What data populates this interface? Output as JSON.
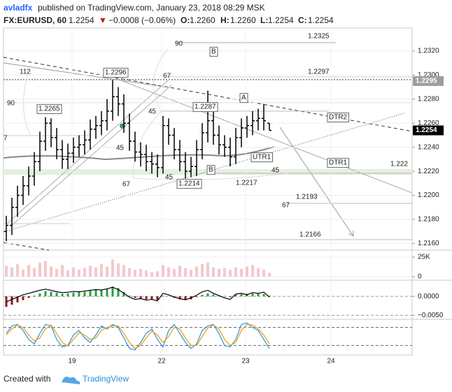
{
  "header": {
    "author": "avladfx",
    "published": "published on TradingView.com, January 23, 2018 08:29 MSK",
    "symbol": "FX:EURUSD, 60",
    "last": "1.2254",
    "arrow": "▼",
    "change": "−0.0008 (−0.06%)",
    "o_label": "O:",
    "o": "1.2260",
    "h_label": "H:",
    "h": "1.2260",
    "l_label": "L:",
    "l": "1.2254",
    "c_label": "C:",
    "c": "1.2254"
  },
  "footer": {
    "created": "Created with",
    "brand": "TradingView"
  },
  "annotations": [
    "1.2325",
    "90",
    "B",
    "1.2297",
    "112",
    "1.2296",
    "67",
    "A",
    "1.2265",
    "90",
    "1.2287",
    "45",
    "DTR2",
    "45",
    "UTR1",
    "DTR1",
    "1.222",
    "45",
    "B",
    "67",
    "1.2214",
    "45",
    "1.2217",
    "67",
    "1.2193",
    "1.2166",
    "7"
  ],
  "price_labels": [
    {
      "value": 1.2295,
      "label": "1.2295",
      "color": "#9e9e9e"
    },
    {
      "value": 1.2254,
      "label": "1.2254",
      "color": "#000000"
    }
  ],
  "chart_data": [
    {
      "type": "ohlc",
      "color": "#000000",
      "x": [
        0,
        1,
        2,
        3,
        4,
        5,
        6,
        7,
        8,
        9,
        10,
        11,
        12,
        13,
        14,
        15,
        16,
        17,
        18,
        19,
        20,
        21,
        22,
        23,
        24,
        25,
        26,
        27,
        28,
        29,
        30,
        31,
        32,
        33,
        34,
        35,
        36,
        37,
        38,
        39,
        40,
        41,
        42,
        43,
        44,
        45,
        46,
        47
      ],
      "open": [
        1.217,
        1.2175,
        1.219,
        1.22,
        1.2208,
        1.2216,
        1.2228,
        1.2245,
        1.226,
        1.2248,
        1.2238,
        1.223,
        1.2235,
        1.224,
        1.2242,
        1.2246,
        1.2255,
        1.2258,
        1.2262,
        1.227,
        1.2282,
        1.2276,
        1.226,
        1.2245,
        1.2236,
        1.2234,
        1.2228,
        1.2226,
        1.2223,
        1.2258,
        1.225,
        1.2238,
        1.2228,
        1.222,
        1.2224,
        1.2238,
        1.2252,
        1.2262,
        1.225,
        1.2242,
        1.224,
        1.2232,
        1.2248,
        1.2256,
        1.2258,
        1.2262,
        1.2264,
        1.226
      ],
      "high": [
        1.2183,
        1.2198,
        1.2208,
        1.2216,
        1.2224,
        1.2236,
        1.2253,
        1.2265,
        1.2264,
        1.2256,
        1.2246,
        1.2243,
        1.2248,
        1.225,
        1.2254,
        1.2263,
        1.2266,
        1.227,
        1.228,
        1.2296,
        1.229,
        1.2284,
        1.2268,
        1.2253,
        1.2244,
        1.2242,
        1.2236,
        1.2234,
        1.2266,
        1.2264,
        1.2256,
        1.2246,
        1.2236,
        1.2232,
        1.2246,
        1.226,
        1.2287,
        1.227,
        1.2258,
        1.225,
        1.2248,
        1.2256,
        1.2264,
        1.2266,
        1.227,
        1.2272,
        1.2276,
        1.226
      ],
      "low": [
        1.2162,
        1.2167,
        1.2182,
        1.2192,
        1.22,
        1.2208,
        1.222,
        1.2237,
        1.224,
        1.223,
        1.2222,
        1.2222,
        1.2227,
        1.2232,
        1.2234,
        1.2238,
        1.2247,
        1.225,
        1.2254,
        1.2262,
        1.2266,
        1.2252,
        1.2237,
        1.2228,
        1.2224,
        1.222,
        1.2218,
        1.2215,
        1.2218,
        1.2242,
        1.223,
        1.222,
        1.2214,
        1.2215,
        1.2216,
        1.223,
        1.2244,
        1.2242,
        1.2234,
        1.2232,
        1.2224,
        1.2226,
        1.224,
        1.2248,
        1.225,
        1.2254,
        1.2254,
        1.2254
      ],
      "close": [
        1.2175,
        1.219,
        1.22,
        1.2208,
        1.2216,
        1.2228,
        1.2245,
        1.226,
        1.2248,
        1.2238,
        1.223,
        1.2235,
        1.224,
        1.2242,
        1.2246,
        1.2255,
        1.2258,
        1.2262,
        1.227,
        1.2282,
        1.2276,
        1.226,
        1.2245,
        1.2236,
        1.2234,
        1.2228,
        1.2226,
        1.2223,
        1.2258,
        1.225,
        1.2238,
        1.2228,
        1.222,
        1.2224,
        1.2238,
        1.2252,
        1.2262,
        1.225,
        1.2242,
        1.224,
        1.2232,
        1.2248,
        1.2256,
        1.2258,
        1.2262,
        1.2264,
        1.2262,
        1.2254
      ],
      "xlim": [
        -0.5,
        72.5
      ],
      "ylim": [
        1.2155,
        1.2338
      ],
      "xticks": [
        {
          "value": 11.75,
          "label": "19"
        },
        {
          "value": 27.75,
          "label": "22"
        },
        {
          "value": 42.75,
          "label": "23"
        },
        {
          "value": 58,
          "label": "24"
        }
      ],
      "yticks": [
        {
          "value": 1.216,
          "label": "1.2160"
        },
        {
          "value": 1.218,
          "label": "1.2180"
        },
        {
          "value": 1.22,
          "label": "1.2200"
        },
        {
          "value": 1.222,
          "label": "1.2220"
        },
        {
          "value": 1.224,
          "label": "1.2240"
        },
        {
          "value": 1.226,
          "label": "1.2260"
        },
        {
          "value": 1.228,
          "label": "1.2280"
        },
        {
          "value": 1.23,
          "label": "1.2300"
        },
        {
          "value": 1.232,
          "label": "1.2320"
        }
      ]
    },
    {
      "type": "bar",
      "color": "#f2c9cc",
      "x": [
        0,
        1,
        2,
        3,
        4,
        5,
        6,
        7,
        8,
        9,
        10,
        11,
        12,
        13,
        14,
        15,
        16,
        17,
        18,
        19,
        20,
        21,
        22,
        23,
        24,
        25,
        26,
        27,
        28,
        29,
        30,
        31,
        32,
        33,
        34,
        35,
        36,
        37,
        38,
        39,
        40,
        41,
        42,
        43,
        44,
        45,
        46,
        47
      ],
      "values": [
        14000,
        12000,
        16000,
        9000,
        15000,
        11000,
        18000,
        20000,
        13000,
        10000,
        15000,
        8000,
        12000,
        9000,
        11000,
        14000,
        12000,
        16000,
        13000,
        22000,
        17000,
        15000,
        11000,
        9000,
        10000,
        8000,
        6000,
        7000,
        15000,
        12000,
        10000,
        14000,
        11000,
        9000,
        13000,
        16000,
        18000,
        12000,
        10000,
        11000,
        9000,
        12000,
        10000,
        13000,
        15000,
        11000,
        9000,
        5000
      ],
      "xlim": [
        -0.5,
        72.5
      ],
      "ylim": [
        0,
        30000
      ],
      "yticks": [
        {
          "value": 25000,
          "label": "25K"
        },
        0
      ]
    },
    {
      "type": "macd",
      "x": [
        0,
        1,
        2,
        3,
        4,
        5,
        6,
        7,
        8,
        9,
        10,
        11,
        12,
        13,
        14,
        15,
        16,
        17,
        18,
        19,
        20,
        21,
        22,
        23,
        24,
        25,
        26,
        27,
        28,
        29,
        30,
        31,
        32,
        33,
        34,
        35,
        36,
        37,
        38,
        39,
        40,
        41,
        42,
        43,
        44,
        45,
        46,
        47
      ],
      "series": [
        {
          "type": "bar",
          "color": "#2e9e3e",
          "negative_color": "#8b1a1a",
          "values": [
            -0.0028,
            -0.0022,
            -0.0016,
            -0.001,
            -0.0004,
            0.0002,
            0.0008,
            0.0014,
            0.0012,
            0.0009,
            0.0007,
            0.0008,
            0.001,
            0.0011,
            0.0012,
            0.0015,
            0.0017,
            0.0018,
            0.002,
            0.0026,
            0.0022,
            0.0012,
            0.0002,
            -0.0004,
            -0.0006,
            -0.0008,
            -0.0009,
            -0.001,
            0.0002,
            0.0001,
            -0.0004,
            -0.0008,
            -0.001,
            -0.0008,
            -0.0002,
            0.0004,
            0.0008,
            0.0005,
            0.0002,
            0.0001,
            -0.0002,
            0.0004,
            0.0006,
            0.0007,
            0.0008,
            0.0008,
            0.0006,
            0.0002
          ]
        },
        {
          "type": "line",
          "color": "#000000",
          "values": [
            -0.0015,
            -0.0008,
            -0.0002,
            0.0004,
            0.0008,
            0.0012,
            0.0016,
            0.0019,
            0.0016,
            0.0012,
            0.001,
            0.0011,
            0.0013,
            0.0012,
            0.0014,
            0.0016,
            0.0018,
            0.0017,
            0.002,
            0.0024,
            0.0018,
            0.0008,
            -0.0002,
            -0.0008,
            -0.0006,
            -0.001,
            -0.0008,
            -0.0012,
            0.0008,
            0.0004,
            -0.0002,
            -0.0006,
            -0.0009,
            -0.0004,
            0.0003,
            0.0012,
            0.0016,
            0.0008,
            0.0002,
            -0.0004,
            -0.0008,
            0.0006,
            0.0008,
            0.0004,
            0.001,
            0.0008,
            0.0011,
            -0.0002
          ]
        }
      ],
      "xlim": [
        -0.5,
        72.5
      ],
      "ylim": [
        -0.0057,
        0.0039
      ],
      "yticks": [
        {
          "value": 0,
          "label": "0.0000"
        },
        {
          "value": -0.005,
          "label": "−0.0050"
        }
      ]
    },
    {
      "type": "line",
      "x": [
        0,
        1,
        2,
        3,
        4,
        5,
        6,
        7,
        8,
        9,
        10,
        11,
        12,
        13,
        14,
        15,
        16,
        17,
        18,
        19,
        20,
        21,
        22,
        23,
        24,
        25,
        26,
        27,
        28,
        29,
        30,
        31,
        32,
        33,
        34,
        35,
        36,
        37,
        38,
        39,
        40,
        41,
        42,
        43,
        44,
        45,
        46,
        47
      ],
      "series": [
        {
          "color": "#2196f3",
          "values": [
            60,
            85,
            90,
            70,
            40,
            25,
            60,
            90,
            85,
            40,
            15,
            20,
            55,
            70,
            45,
            30,
            55,
            85,
            75,
            90,
            80,
            45,
            10,
            5,
            30,
            60,
            75,
            40,
            15,
            70,
            90,
            60,
            30,
            10,
            25,
            70,
            85,
            90,
            60,
            20,
            15,
            40,
            90,
            95,
            80,
            70,
            40,
            10
          ]
        },
        {
          "color": "#ff9800",
          "values": [
            55,
            75,
            88,
            80,
            55,
            35,
            45,
            75,
            88,
            60,
            30,
            18,
            40,
            62,
            55,
            40,
            45,
            70,
            80,
            85,
            85,
            60,
            30,
            10,
            20,
            45,
            68,
            55,
            30,
            50,
            80,
            75,
            45,
            20,
            20,
            50,
            78,
            88,
            75,
            40,
            20,
            30,
            70,
            90,
            88,
            75,
            55,
            25
          ]
        }
      ],
      "xlim": [
        -0.5,
        72.5
      ],
      "ylim": [
        0,
        100
      ],
      "levels": [
        20,
        80
      ]
    }
  ]
}
